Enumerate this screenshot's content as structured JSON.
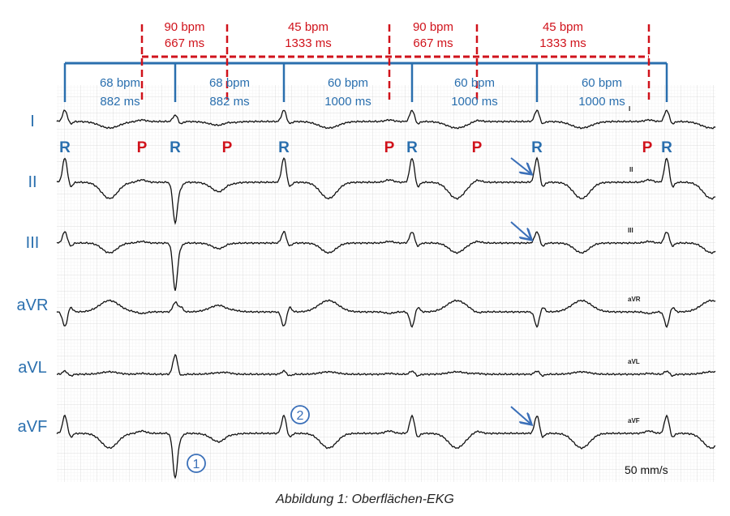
{
  "red_intervals": [
    {
      "bpm": "90 bpm",
      "ms": "667 ms"
    },
    {
      "bpm": "45 bpm",
      "ms": "1333 ms"
    },
    {
      "bpm": "90 bpm",
      "ms": "667 ms"
    },
    {
      "bpm": "45 bpm",
      "ms": "1333 ms"
    }
  ],
  "blue_intervals": [
    {
      "bpm": "68 bpm",
      "ms": "882 ms"
    },
    {
      "bpm": "68 bpm",
      "ms": "882 ms"
    },
    {
      "bpm": "60 bpm",
      "ms": "1000 ms"
    },
    {
      "bpm": "60 bpm",
      "ms": "1000 ms"
    },
    {
      "bpm": "60 bpm",
      "ms": "1000 ms"
    }
  ],
  "wave_markers": [
    "R",
    "P",
    "R",
    "P",
    "R",
    "P",
    "R",
    "P",
    "R",
    "P",
    "R"
  ],
  "leads": [
    "I",
    "II",
    "III",
    "aVR",
    "aVL",
    "aVF"
  ],
  "trace_labels": [
    "I",
    "II",
    "III",
    "aVR",
    "aVL",
    "aVF"
  ],
  "annotations": {
    "circle_1": "1",
    "circle_2": "2"
  },
  "speed": "50 mm/s",
  "caption": "Abbildung 1: Oberflächen-EKG",
  "colors": {
    "atrial": "#d0121b",
    "ventricular": "#2a6fae",
    "trace": "#111111",
    "grid": "#dcdcdc"
  }
}
